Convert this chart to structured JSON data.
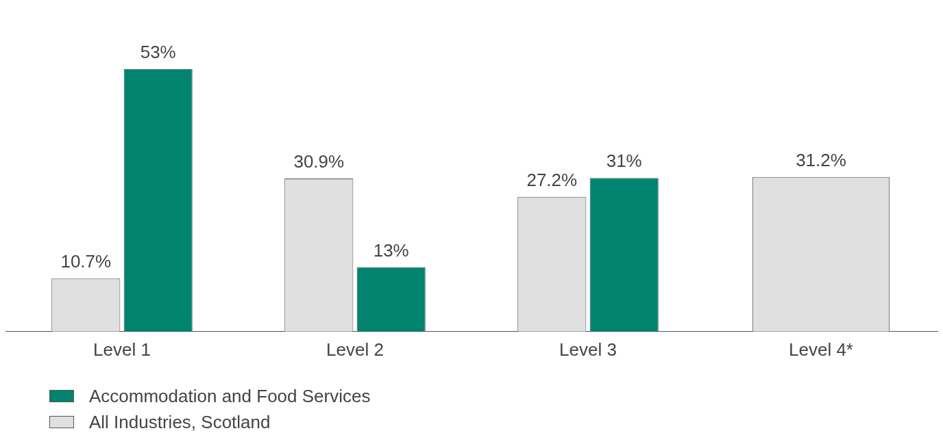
{
  "chart_data": {
    "type": "bar",
    "categories": [
      "Level 1",
      "Level 2",
      "Level 3",
      "Level 4*"
    ],
    "series": [
      {
        "name": "All Industries, Scotland",
        "color": "#e0e0e0",
        "values": [
          10.7,
          30.9,
          27.2,
          31.2
        ],
        "value_labels": [
          "10.7%",
          "30.9%",
          "27.2%",
          "31.2%"
        ]
      },
      {
        "name": "Accommodation and Food Services",
        "color": "#00846f",
        "values": [
          53,
          13,
          31,
          null
        ],
        "value_labels": [
          "53%",
          "13%",
          "31%",
          null
        ]
      }
    ],
    "legend": "bottom left",
    "grid": false
  }
}
